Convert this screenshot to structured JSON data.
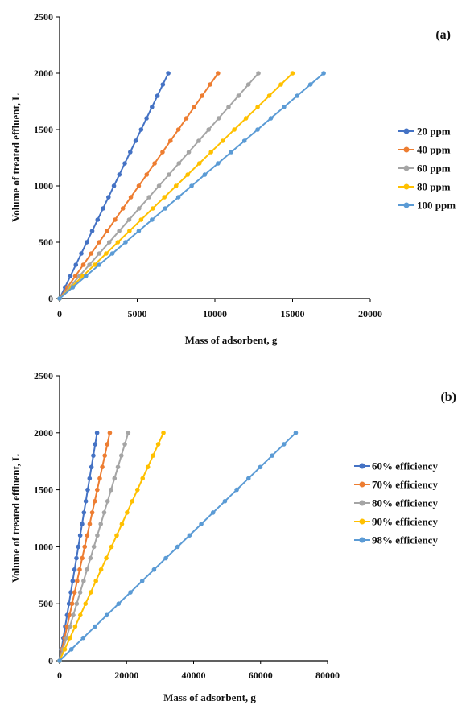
{
  "chart_data": [
    {
      "type": "line",
      "panel_label": "(a)",
      "xlabel": "Mass of adsorbent, g",
      "ylabel": "Volume of treated effluent, L",
      "xlim": [
        0,
        20000
      ],
      "ylim": [
        0,
        2500
      ],
      "xticks": [
        0,
        5000,
        10000,
        15000,
        20000
      ],
      "yticks": [
        0,
        500,
        1000,
        1500,
        2000,
        2500
      ],
      "legend_position": "right",
      "grid": false,
      "series": [
        {
          "name": "20 ppm",
          "color": "#4472C4",
          "x": [
            0,
            7000
          ],
          "y": [
            0,
            2000
          ]
        },
        {
          "name": "40 ppm",
          "color": "#ED7D31",
          "x": [
            0,
            10200
          ],
          "y": [
            0,
            2000
          ]
        },
        {
          "name": "60 ppm",
          "color": "#A5A5A5",
          "x": [
            0,
            12800
          ],
          "y": [
            0,
            2000
          ]
        },
        {
          "name": "80 ppm",
          "color": "#FFC000",
          "x": [
            0,
            15000
          ],
          "y": [
            0,
            2000
          ]
        },
        {
          "name": "100 ppm",
          "color": "#5B9BD5",
          "x": [
            0,
            17000
          ],
          "y": [
            0,
            2000
          ]
        }
      ]
    },
    {
      "type": "line",
      "panel_label": "(b)",
      "xlabel": "Mass of adsorbent, g",
      "ylabel": "Volume of treated effluent, L",
      "xlim": [
        0,
        80000
      ],
      "ylim": [
        0,
        2500
      ],
      "xticks": [
        0,
        20000,
        40000,
        60000,
        80000
      ],
      "yticks": [
        0,
        500,
        1000,
        1500,
        2000,
        2500
      ],
      "legend_position": "right",
      "grid": false,
      "series": [
        {
          "name": "60% efficiency",
          "color": "#4472C4",
          "x": [
            0,
            11200
          ],
          "y": [
            0,
            2000
          ]
        },
        {
          "name": "70% efficiency",
          "color": "#ED7D31",
          "x": [
            0,
            15000
          ],
          "y": [
            0,
            2000
          ]
        },
        {
          "name": "80% efficiency",
          "color": "#A5A5A5",
          "x": [
            0,
            20500
          ],
          "y": [
            0,
            2000
          ]
        },
        {
          "name": "90% efficiency",
          "color": "#FFC000",
          "x": [
            0,
            31000
          ],
          "y": [
            0,
            2000
          ]
        },
        {
          "name": "98% efficiency",
          "color": "#5B9BD5",
          "x": [
            0,
            70500
          ],
          "y": [
            0,
            2000
          ]
        }
      ]
    }
  ]
}
